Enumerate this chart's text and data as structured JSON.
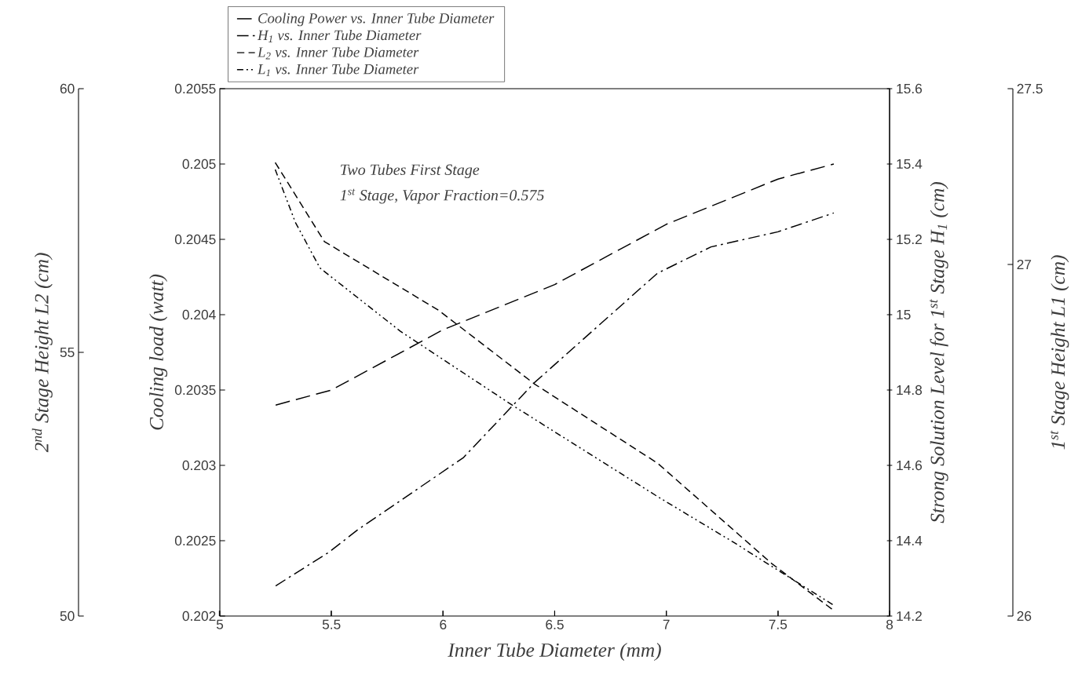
{
  "chart_data": [
    {
      "type": "line",
      "xlabel": "Inner Tube Diameter (mm)",
      "ylabel": "Cooling load (watt)",
      "y2label": "Strong Solution Level for 1$^{st}$ Stage H$_{1}$ (cm)",
      "annotations": [
        "Two Tubes First Stage",
        "1$^{st}$ Stage, Vapor Fraction=0.575"
      ],
      "xlim": [
        5,
        8
      ],
      "xticks": [
        5,
        5.5,
        6,
        6.5,
        7,
        7.5,
        8
      ],
      "ylim": [
        0.202,
        0.2055
      ],
      "yticks": [
        0.202,
        0.2025,
        0.203,
        0.2035,
        0.204,
        0.2045,
        0.205,
        0.2055
      ],
      "y2lim": [
        14.2,
        15.6
      ],
      "y2ticks": [
        14.2,
        14.4,
        14.6,
        14.8,
        15,
        15.2,
        15.4,
        15.6
      ],
      "legend": "top left",
      "grid": false,
      "series": [
        {
          "name": "Cooling Power vs. Inner Tube Diameter",
          "color": "#000000",
          "line_style": "longdashed",
          "x": [
            5.25,
            5.5,
            6.0,
            6.5,
            7.0,
            7.5,
            7.75
          ],
          "values": [
            0.2034,
            0.2035,
            0.2039,
            0.2042,
            0.2046,
            0.2049,
            0.205
          ]
        },
        {
          "name": "H$_{1}$ vs. Inner Tube Diameter",
          "color": "#000000",
          "line_style": "dashdot",
          "axis": "y2",
          "x": [
            5.25,
            5.49,
            5.62,
            6.09,
            6.41,
            6.96,
            7.2,
            7.5,
            7.75
          ],
          "values": [
            14.28,
            14.37,
            14.43,
            14.62,
            14.82,
            15.11,
            15.18,
            15.22,
            15.27
          ]
        }
      ]
    },
    {
      "type": "line",
      "ylabel": "2$^{nd}$ Stage Height L2 (cm)",
      "y2label": "1$^{st}$ Stage Height L1 (cm)",
      "xlim": [
        4.37,
        8.55
      ],
      "xticks": [
        5,
        5.5,
        6,
        6.5,
        7,
        7.5,
        8
      ],
      "ylim": [
        50,
        60
      ],
      "yticks": [
        50,
        55,
        60
      ],
      "y2lim": [
        26,
        27.5
      ],
      "y2ticks": [
        26,
        27,
        27.5
      ],
      "tick_labels": "y",
      "series": [
        {
          "name": "L$_{2}$ vs. Inner Tube Diameter",
          "color": "#000000",
          "line_style": "dashed",
          "x": [
            5.25,
            5.47,
            5.98,
            6.41,
            6.96,
            7.47,
            7.75
          ],
          "values": [
            58.6,
            57.1,
            55.8,
            54.4,
            52.9,
            51.0,
            50.1
          ]
        },
        {
          "name": "L$_{1}$ vs. Inner Tube Diameter",
          "color": "#000000",
          "line_style": "dashdotdot",
          "axis": "y2",
          "x": [
            5.25,
            5.34,
            5.45,
            5.81,
            6.31,
            6.96,
            7.3,
            7.75
          ],
          "values": [
            27.27,
            27.12,
            26.99,
            26.81,
            26.6,
            26.34,
            26.21,
            26.03
          ]
        }
      ]
    }
  ]
}
